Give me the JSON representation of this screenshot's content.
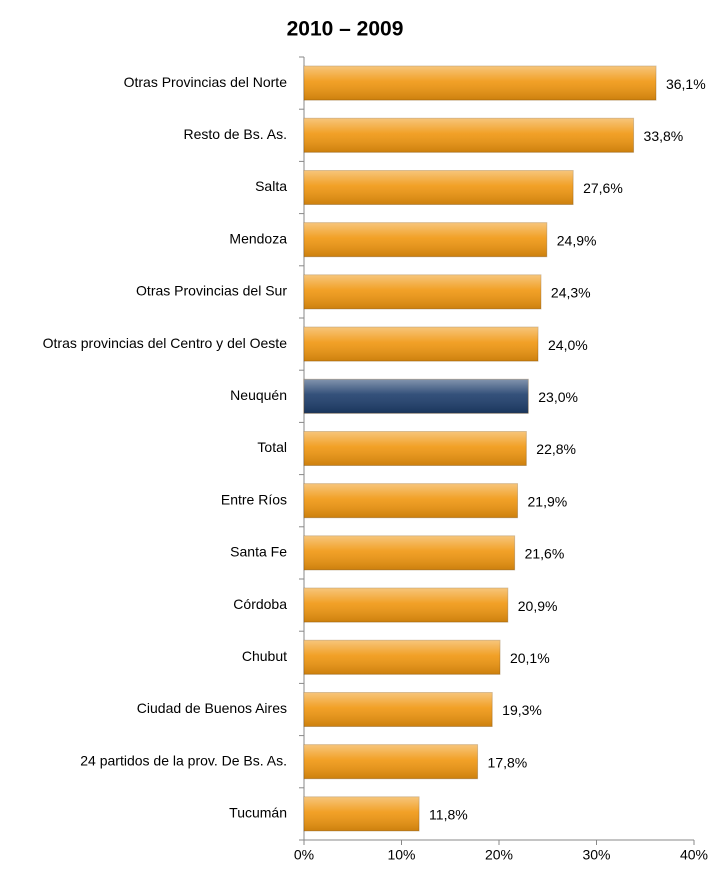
{
  "chart_data": {
    "type": "bar",
    "orientation": "horizontal",
    "title": "2010 – 2009",
    "categories": [
      "Otras Provincias del Norte",
      "Resto de Bs. As.",
      "Salta",
      "Mendoza",
      "Otras Provincias del Sur",
      "Otras provincias del Centro y del Oeste",
      "Neuquén",
      "Total",
      "Entre Ríos",
      "Santa Fe",
      "Córdoba",
      "Chubut",
      "Ciudad de Buenos Aires",
      "24 partidos de la prov. De Bs. As.",
      "Tucumán"
    ],
    "values": [
      36.1,
      33.8,
      27.6,
      24.9,
      24.3,
      24.0,
      23.0,
      22.8,
      21.9,
      21.6,
      20.9,
      20.1,
      19.3,
      17.8,
      11.8
    ],
    "value_labels": [
      "36,1%",
      "33,8%",
      "27,6%",
      "24,9%",
      "24,3%",
      "24,0%",
      "23,0%",
      "22,8%",
      "21,9%",
      "21,6%",
      "20,9%",
      "20,1%",
      "19,3%",
      "17,8%",
      "11,8%"
    ],
    "colors": [
      "#f0960f",
      "#f0960f",
      "#f0960f",
      "#f0960f",
      "#f0960f",
      "#f0960f",
      "#1d3d6b",
      "#f0960f",
      "#f0960f",
      "#f0960f",
      "#f0960f",
      "#f0960f",
      "#f0960f",
      "#f0960f",
      "#f0960f"
    ],
    "xlim": [
      0,
      40
    ],
    "xticks": [
      {
        "value": 0,
        "label": "0%"
      },
      {
        "value": 10,
        "label": "10%"
      },
      {
        "value": 20,
        "label": "20%"
      },
      {
        "value": 30,
        "label": "30%"
      },
      {
        "value": 40,
        "label": "40%"
      }
    ]
  }
}
